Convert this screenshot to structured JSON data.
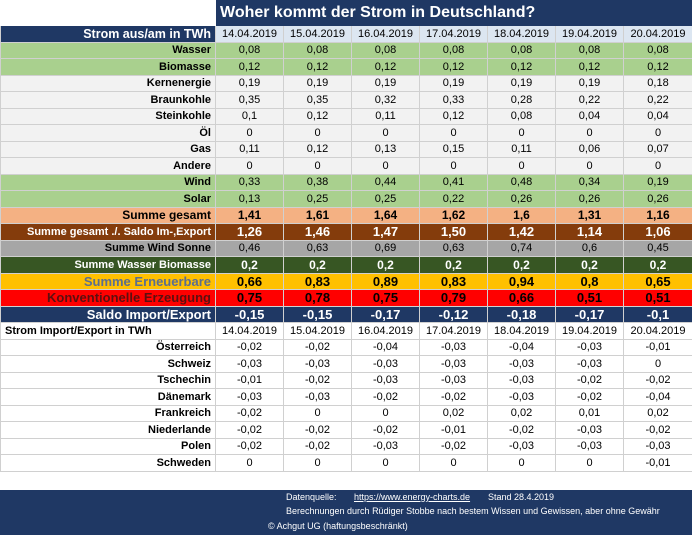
{
  "title": "Woher kommt der Strom in Deutschland?",
  "header": {
    "label": "Strom aus/am in TWh",
    "dates": [
      "14.04.2019",
      "15.04.2019",
      "16.04.2019",
      "17.04.2019",
      "18.04.2019",
      "19.04.2019",
      "20.04.2019"
    ]
  },
  "rows": [
    {
      "label": "Wasser",
      "values": [
        "0,08",
        "0,08",
        "0,08",
        "0,08",
        "0,08",
        "0,08",
        "0,08"
      ]
    },
    {
      "label": "Biomasse",
      "values": [
        "0,12",
        "0,12",
        "0,12",
        "0,12",
        "0,12",
        "0,12",
        "0,12"
      ]
    },
    {
      "label": "Kernenergie",
      "values": [
        "0,19",
        "0,19",
        "0,19",
        "0,19",
        "0,19",
        "0,19",
        "0,18"
      ]
    },
    {
      "label": "Braunkohle",
      "values": [
        "0,35",
        "0,35",
        "0,32",
        "0,33",
        "0,28",
        "0,22",
        "0,22"
      ]
    },
    {
      "label": "Steinkohle",
      "values": [
        "0,1",
        "0,12",
        "0,11",
        "0,12",
        "0,08",
        "0,04",
        "0,04"
      ]
    },
    {
      "label": "Öl",
      "values": [
        "0",
        "0",
        "0",
        "0",
        "0",
        "0",
        "0"
      ]
    },
    {
      "label": "Gas",
      "values": [
        "0,11",
        "0,12",
        "0,13",
        "0,15",
        "0,11",
        "0,06",
        "0,07"
      ]
    },
    {
      "label": "Andere",
      "values": [
        "0",
        "0",
        "0",
        "0",
        "0",
        "0",
        "0"
      ]
    },
    {
      "label": "Wind",
      "values": [
        "0,33",
        "0,38",
        "0,44",
        "0,41",
        "0,48",
        "0,34",
        "0,19"
      ]
    },
    {
      "label": "Solar",
      "values": [
        "0,13",
        "0,25",
        "0,25",
        "0,22",
        "0,26",
        "0,26",
        "0,26"
      ]
    },
    {
      "label": "Summe gesamt",
      "values": [
        "1,41",
        "1,61",
        "1,64",
        "1,62",
        "1,6",
        "1,31",
        "1,16"
      ]
    },
    {
      "label": "Summe gesamt ./. Saldo Im-,Export",
      "values": [
        "1,26",
        "1,46",
        "1,47",
        "1,50",
        "1,42",
        "1,14",
        "1,06"
      ]
    },
    {
      "label": "Summe Wind Sonne",
      "values": [
        "0,46",
        "0,63",
        "0,69",
        "0,63",
        "0,74",
        "0,6",
        "0,45"
      ]
    },
    {
      "label": "Summe Wasser Biomasse",
      "values": [
        "0,2",
        "0,2",
        "0,2",
        "0,2",
        "0,2",
        "0,2",
        "0,2"
      ]
    },
    {
      "label": "Summe Erneuerbare",
      "values": [
        "0,66",
        "0,83",
        "0,89",
        "0,83",
        "0,94",
        "0,8",
        "0,65"
      ]
    },
    {
      "label": "Konventionelle Erzeugung",
      "values": [
        "0,75",
        "0,78",
        "0,75",
        "0,79",
        "0,66",
        "0,51",
        "0,51"
      ]
    },
    {
      "label": "Saldo Import/Export",
      "values": [
        "-0,15",
        "-0,15",
        "-0,17",
        "-0,12",
        "-0,18",
        "-0,17",
        "-0,1"
      ]
    }
  ],
  "import_header": {
    "label": "Strom Import/Export in TWh",
    "dates": [
      "14.04.2019",
      "15.04.2019",
      "16.04.2019",
      "17.04.2019",
      "18.04.2019",
      "19.04.2019",
      "20.04.2019"
    ]
  },
  "import_rows": [
    {
      "label": "Österreich",
      "values": [
        "-0,02",
        "-0,02",
        "-0,04",
        "-0,03",
        "-0,04",
        "-0,03",
        "-0,01"
      ]
    },
    {
      "label": "Schweiz",
      "values": [
        "-0,03",
        "-0,03",
        "-0,03",
        "-0,03",
        "-0,03",
        "-0,03",
        "0"
      ]
    },
    {
      "label": "Tschechin",
      "values": [
        "-0,01",
        "-0,02",
        "-0,03",
        "-0,03",
        "-0,03",
        "-0,02",
        "-0,02"
      ]
    },
    {
      "label": "Dänemark",
      "values": [
        "-0,03",
        "-0,03",
        "-0,02",
        "-0,02",
        "-0,03",
        "-0,02",
        "-0,04"
      ]
    },
    {
      "label": "Frankreich",
      "values": [
        "-0,02",
        "0",
        "0",
        "0,02",
        "0,02",
        "0,01",
        "0,02"
      ]
    },
    {
      "label": "Niederlande",
      "values": [
        "-0,02",
        "-0,02",
        "-0,02",
        "-0,01",
        "-0,02",
        "-0,03",
        "-0,02"
      ]
    },
    {
      "label": "Polen",
      "values": [
        "-0,02",
        "-0,02",
        "-0,03",
        "-0,02",
        "-0,03",
        "-0,03",
        "-0,03"
      ]
    },
    {
      "label": "Schweden",
      "values": [
        "0",
        "0",
        "0",
        "0",
        "0",
        "0",
        "-0,01"
      ]
    }
  ],
  "footer": {
    "source_label": "Datenquelle:",
    "source_url": "https://www.energy-charts.de",
    "stand": "Stand  28.4.2019",
    "note": "Berechnungen durch Rüdiger Stobbe nach bestem Wissen und Gewissen, aber ohne Gewähr",
    "copyright": "©    Achgut UG (haftungsbeschränkt)"
  }
}
